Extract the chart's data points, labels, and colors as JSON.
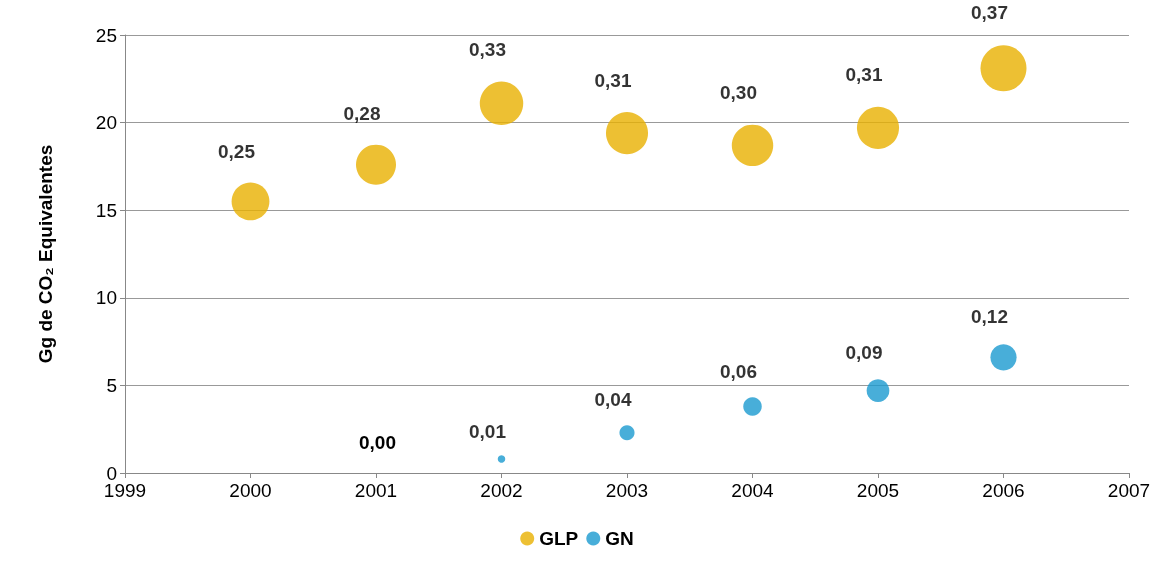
{
  "chart_data": {
    "type": "bubble",
    "ylabel": "Gg de CO₂ Equivalentes",
    "xlim": [
      1999,
      2007
    ],
    "xticks": [
      1999,
      2000,
      2001,
      2002,
      2003,
      2004,
      2005,
      2006,
      2007
    ],
    "ylim": [
      0,
      25
    ],
    "yticks": [
      0,
      5,
      10,
      15,
      20,
      25
    ],
    "grid": "y",
    "legend": "bottom",
    "series": [
      {
        "name": "GLP",
        "color": "#e8b000",
        "x": [
          2000,
          2001,
          2002,
          2003,
          2004,
          2005,
          2006
        ],
        "values": [
          15.5,
          17.6,
          21.1,
          19.4,
          18.7,
          19.7,
          23.1
        ],
        "sizes": [
          0.25,
          0.28,
          0.33,
          0.31,
          0.3,
          0.31,
          0.37
        ],
        "value_labels": [
          "0,25",
          "0,28",
          "0,33",
          "0,31",
          "0,30",
          "0,31",
          "0,37"
        ]
      },
      {
        "name": "GN",
        "color": "#1a9ad0",
        "x": [
          2002,
          2003,
          2004,
          2005,
          2006
        ],
        "values": [
          0.8,
          2.3,
          3.8,
          4.7,
          6.6
        ],
        "sizes": [
          0.01,
          0.04,
          0.06,
          0.09,
          0.12
        ],
        "value_labels": [
          "0,01",
          "0,04",
          "0,06",
          "0,09",
          "0,12"
        ]
      }
    ],
    "annotations": [
      "0,00"
    ]
  }
}
